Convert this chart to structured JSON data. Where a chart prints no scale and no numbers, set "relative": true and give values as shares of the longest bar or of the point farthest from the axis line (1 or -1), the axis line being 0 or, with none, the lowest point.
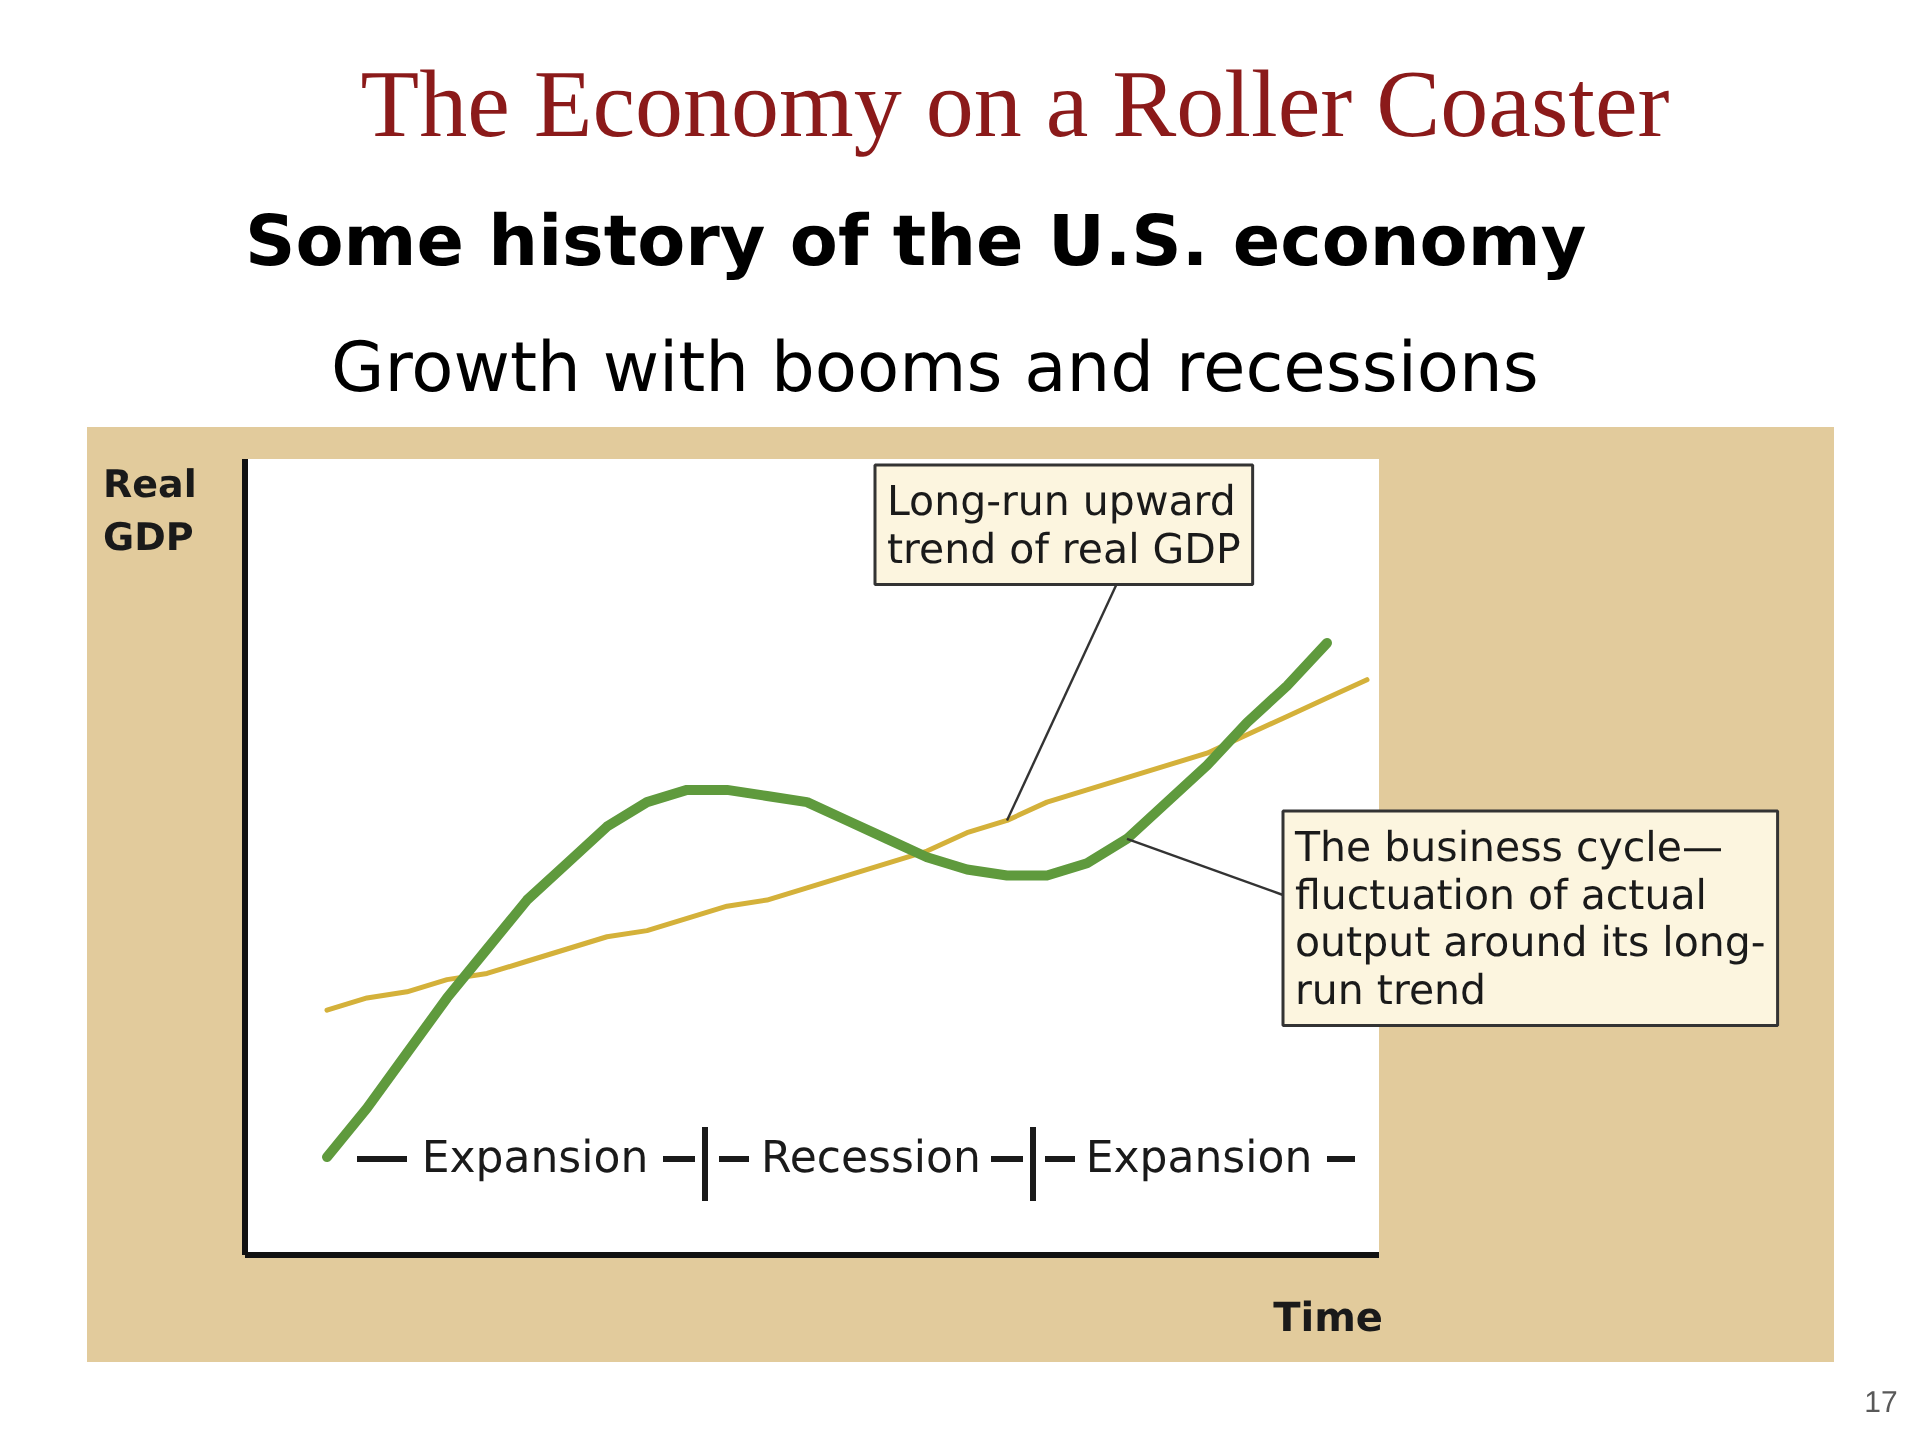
{
  "chart_data": {
    "type": "line",
    "title": "The Economy on a Roller Coaster",
    "subtitle": "Some history of the U.S. economy",
    "xlabel": "Time",
    "ylabel": "Real\nGDP",
    "relative": true,
    "categories": [
      null,
      null,
      null,
      null,
      null,
      null,
      null,
      null,
      null,
      null,
      null,
      null,
      null,
      null,
      null,
      null,
      null,
      null,
      null,
      null,
      null,
      null,
      null,
      null,
      null,
      null,
      null
    ],
    "series": [
      {
        "color": "#d4b13a",
        "values": [
          0.4,
          0.42,
          0.43,
          0.45,
          0.46,
          0.48,
          0.5,
          0.52,
          0.53,
          0.55,
          0.57,
          0.58,
          0.6,
          0.62,
          0.64,
          0.66,
          0.69,
          0.71,
          0.74,
          0.76,
          0.78,
          0.8,
          0.82,
          0.85,
          0.88,
          0.91,
          0.94
        ]
      },
      {
        "color": "#5f9a3d",
        "values": [
          0.16,
          0.24,
          0.33,
          0.42,
          0.5,
          0.58,
          0.64,
          0.7,
          0.74,
          0.76,
          0.76,
          0.75,
          0.74,
          0.71,
          0.68,
          0.65,
          0.63,
          0.62,
          0.62,
          0.64,
          0.68,
          0.74,
          0.8,
          0.87,
          0.93,
          1.0,
          null
        ]
      }
    ],
    "annotations": [
      "Growth with booms and recessions",
      "Long-run upward\ntrend of real GDP",
      "The business cycle—\nfluctuation of actual\noutput around its long-\nrun trend",
      "Expansion",
      "Recession",
      "Expansion",
      "17"
    ]
  }
}
